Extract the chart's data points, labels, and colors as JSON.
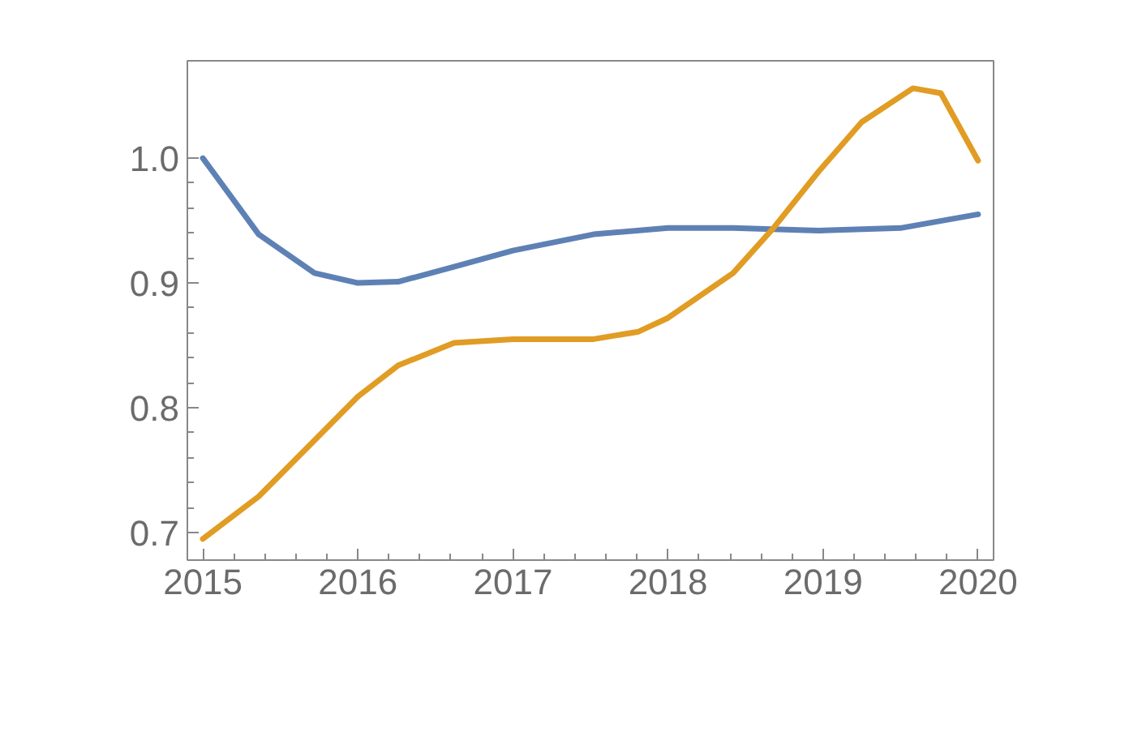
{
  "chart_data": {
    "type": "line",
    "xlim": [
      2014.9,
      2020.1
    ],
    "ylim": [
      0.678,
      1.078
    ],
    "xticks": [
      2015,
      2016,
      2017,
      2018,
      2019,
      2020
    ],
    "yticks": [
      {
        "value": 0.7,
        "label": "0.7"
      },
      {
        "value": 0.8,
        "label": "0.8"
      },
      {
        "value": 0.9,
        "label": "0.9"
      },
      {
        "value": 1.0,
        "label": "1.0"
      }
    ],
    "grid": false,
    "series": [
      {
        "color": "#5e81b5",
        "x": [
          2015,
          2015.36,
          2015.72,
          2016,
          2016.26,
          2016.62,
          2017,
          2017.52,
          2018,
          2018.42,
          2018.97,
          2019.5,
          2020
        ],
        "values": [
          1.0,
          0.939,
          0.908,
          0.9,
          0.901,
          0.913,
          0.926,
          0.939,
          0.944,
          0.944,
          0.942,
          0.944,
          0.955
        ]
      },
      {
        "color": "#e19c24",
        "x": [
          2015,
          2015.36,
          2015.72,
          2016,
          2016.26,
          2016.62,
          2017,
          2017.52,
          2017.81,
          2018,
          2018.42,
          2018.68,
          2018.97,
          2019.25,
          2019.58,
          2019.76,
          2020
        ],
        "values": [
          0.695,
          0.729,
          0.774,
          0.809,
          0.834,
          0.852,
          0.855,
          0.855,
          0.861,
          0.872,
          0.908,
          0.944,
          0.989,
          1.029,
          1.056,
          1.052,
          0.998
        ]
      }
    ]
  }
}
